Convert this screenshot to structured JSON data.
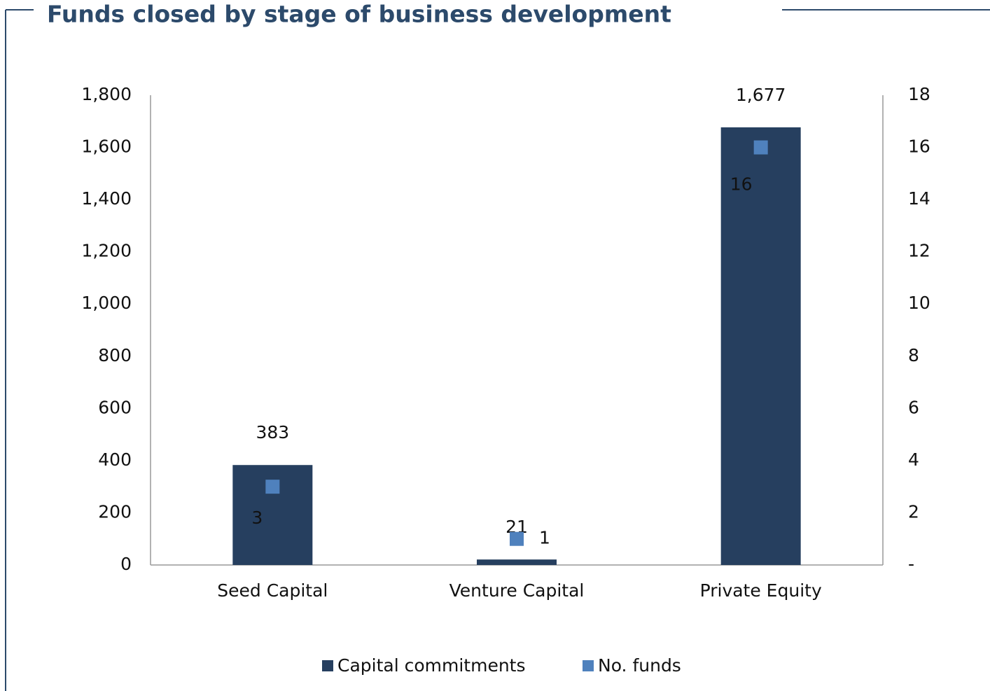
{
  "chart_data": {
    "type": "bar",
    "title": "Funds closed by stage of business development",
    "categories": [
      "Seed Capital",
      "Venture Capital",
      "Private Equity"
    ],
    "series": [
      {
        "name": "Capital commitments",
        "type": "bar",
        "color": "#263f5f",
        "values": [
          383,
          21,
          1677
        ],
        "value_labels": [
          "383",
          "21",
          "1,677"
        ]
      },
      {
        "name": "No. funds",
        "type": "scatter",
        "axis": "y2",
        "color": "#4f81bd",
        "values": [
          3,
          1,
          16
        ]
      }
    ],
    "ylim": [
      0,
      1800
    ],
    "yticks": [
      0,
      200,
      400,
      600,
      800,
      {
        "value": 1000,
        "label": "1,000"
      },
      {
        "value": 1200,
        "label": "1,200"
      },
      {
        "value": 1400,
        "label": "1,400"
      },
      {
        "value": 1600,
        "label": "1,600"
      },
      {
        "value": 1800,
        "label": "1,800"
      }
    ],
    "y2lim": [
      0,
      18
    ],
    "y2ticks": [
      {
        "value": 0,
        "label": "-"
      },
      2,
      4,
      6,
      8,
      10,
      12,
      14,
      16,
      18
    ],
    "grid": false,
    "legend": "bottom"
  }
}
